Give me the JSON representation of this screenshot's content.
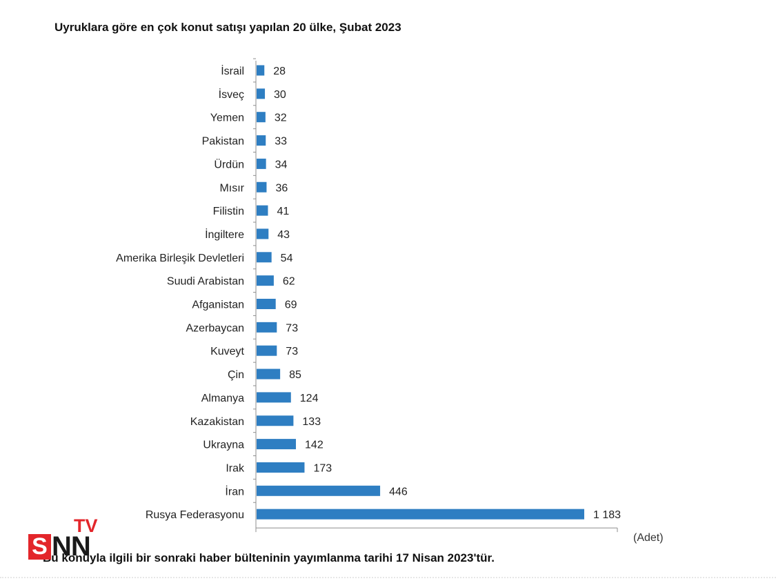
{
  "header": {
    "title": "Uyruklara göre en çok konut satışı yapılan 20 ülke, Şubat 2023"
  },
  "chart_data": {
    "type": "bar",
    "orientation": "horizontal",
    "title": "Uyruklara göre en çok konut satışı yapılan 20 ülke, Şubat 2023",
    "unit_label": "(Adet)",
    "bar_color": "#2e7ec2",
    "xlim": [
      0,
      1400
    ],
    "categories": [
      "İsrail",
      "İsveç",
      "Yemen",
      "Pakistan",
      "Ürdün",
      "Mısır",
      "Filistin",
      "İngiltere",
      "Amerika Birleşik Devletleri",
      "Suudi Arabistan",
      "Afganistan",
      "Azerbaycan",
      "Kuveyt",
      "Çin",
      "Almanya",
      "Kazakistan",
      "Ukrayna",
      "Irak",
      "İran",
      "Rusya Federasyonu"
    ],
    "values": [
      28,
      30,
      32,
      33,
      34,
      36,
      41,
      43,
      54,
      62,
      69,
      73,
      73,
      85,
      124,
      133,
      142,
      173,
      446,
      1183
    ],
    "value_labels": [
      "28",
      "30",
      "32",
      "33",
      "34",
      "36",
      "41",
      "43",
      "54",
      "62",
      "69",
      "73",
      "73",
      "85",
      "124",
      "133",
      "142",
      "173",
      "446",
      "1 183"
    ]
  },
  "footnote": {
    "text": "Bu konuyla ilgili bir sonraki haber bülteninin yayımlanma tarihi 17 Nisan 2023'tür."
  },
  "logo": {
    "s": "S",
    "nn": "NN",
    "tv": "TV",
    "brand_red": "#e3262b"
  }
}
